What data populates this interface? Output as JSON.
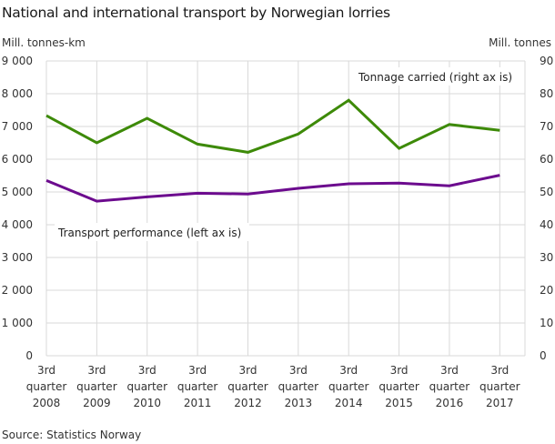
{
  "title": "National and international transport by Norwegian lorries",
  "unit_left": "Mill. tonnes-km",
  "unit_right": "Mill. tonnes",
  "source": "Source: Statistics Norway",
  "colors": {
    "tonnage": "#3d8a08",
    "transport": "#6c0b8e",
    "grid": "#d9d9d9"
  },
  "annotations": {
    "tonnage": "Tonnage carried  (right ax is)",
    "transport": "Transport  performance  (left ax is)"
  },
  "chart_data": {
    "type": "line",
    "title": "National and international transport by Norwegian lorries",
    "categories": [
      [
        "3rd",
        "quarter",
        "2008"
      ],
      [
        "3rd",
        "quarter",
        "2009"
      ],
      [
        "3rd",
        "quarter",
        "2010"
      ],
      [
        "3rd",
        "quarter",
        "2011"
      ],
      [
        "3rd",
        "quarter",
        "2012"
      ],
      [
        "3rd",
        "quarter",
        "2013"
      ],
      [
        "3rd",
        "quarter",
        "2014"
      ],
      [
        "3rd",
        "quarter",
        "2015"
      ],
      [
        "3rd",
        "quarter",
        "2016"
      ],
      [
        "3rd",
        "quarter",
        "2017"
      ]
    ],
    "series": [
      {
        "name": "Transport performance (left axis)",
        "axis": "left",
        "unit": "Mill. tonnes-km",
        "values": [
          5350,
          4720,
          4850,
          4960,
          4940,
          5110,
          5250,
          5270,
          5190,
          5510
        ]
      },
      {
        "name": "Tonnage carried (right axis)",
        "axis": "right",
        "unit": "Mill. tonnes",
        "values": [
          73.3,
          65.0,
          72.5,
          64.6,
          62.1,
          67.7,
          78.0,
          63.3,
          70.6,
          68.8
        ]
      }
    ],
    "ylabel_left": "Mill. tonnes-km",
    "ylabel_right": "Mill. tonnes",
    "ylim_left": [
      0,
      9000
    ],
    "ylim_right": [
      0,
      90
    ],
    "yticks_left": [
      "0",
      "1 000",
      "2 000",
      "3 000",
      "4 000",
      "5 000",
      "6 000",
      "7 000",
      "8 000",
      "9 000"
    ],
    "yticks_right": [
      "0",
      "10",
      "20",
      "30",
      "40",
      "50",
      "60",
      "70",
      "80",
      "90"
    ],
    "grid": true,
    "legend": "inline annotations",
    "source": "Source: Statistics Norway"
  }
}
